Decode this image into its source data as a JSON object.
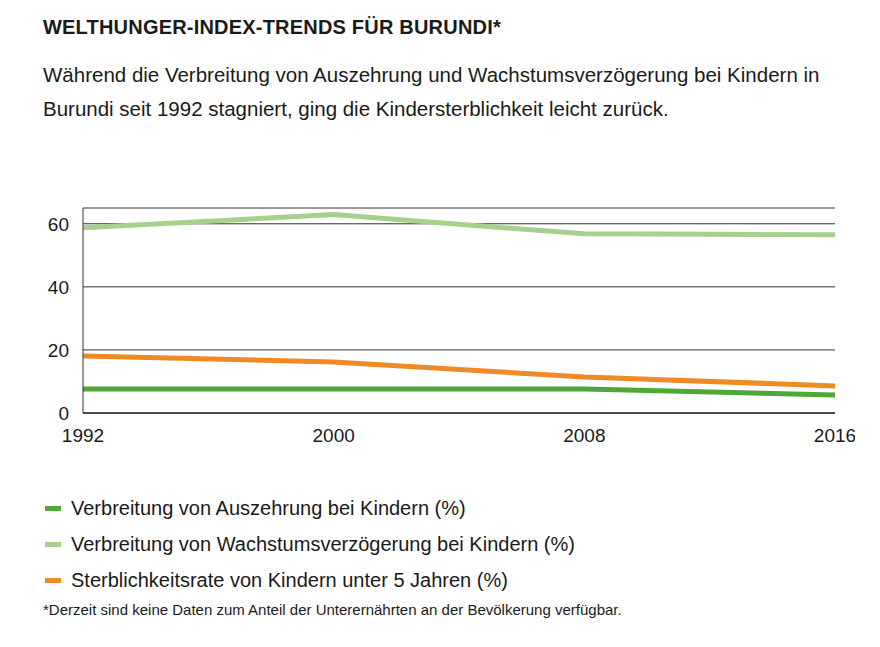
{
  "chart_data": {
    "type": "line",
    "title": "WELTHUNGER-INDEX-TRENDS FÜR BURUNDI*",
    "subtitle": "Während die Verbreitung von Auszehrung und Wachstumsverzögerung bei Kindern in Burundi seit 1992 stagniert, ging die Kindersterblichkeit leicht zurück.",
    "footnote": "*Derzeit sind keine Daten zum Anteil der Unterernährten an der Bevölkerung verfügbar.",
    "x": [
      1992,
      2000,
      2008,
      2016
    ],
    "xlim": [
      1992,
      2016
    ],
    "xticks": [
      1992,
      2000,
      2008,
      2016
    ],
    "ylim": [
      0,
      65
    ],
    "yticks": [
      0,
      20,
      40,
      60
    ],
    "grid": true,
    "legend": "bottom",
    "series": [
      {
        "name": "Verbreitung von Auszehrung bei Kindern (%)",
        "color": "#4ea737",
        "values": [
          7.6,
          7.6,
          7.6,
          5.7
        ]
      },
      {
        "name": "Verbreitung von Wachstumsverzögerung bei Kindern (%)",
        "color": "#a8d08d",
        "values": [
          58.7,
          62.9,
          56.8,
          56.5
        ]
      },
      {
        "name": "Sterblichkeitsrate von Kindern unter 5 Jahren (%)",
        "color": "#f08a24",
        "values": [
          18.1,
          16.2,
          11.4,
          8.6
        ]
      }
    ]
  }
}
